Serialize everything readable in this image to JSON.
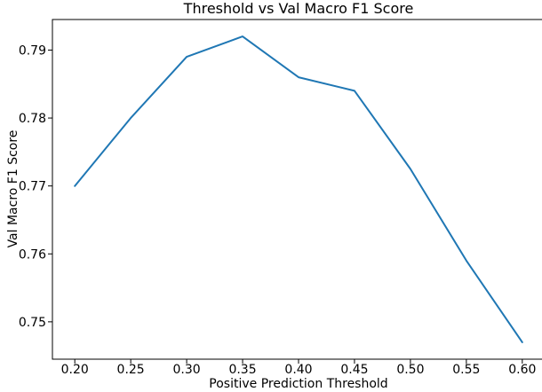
{
  "chart_data": {
    "type": "line",
    "title": "Threshold vs Val Macro F1 Score",
    "xlabel": "Positive Prediction Threshold",
    "ylabel": "Val Macro F1 Score",
    "x": [
      0.2,
      0.25,
      0.3,
      0.35,
      0.4,
      0.45,
      0.5,
      0.55,
      0.6
    ],
    "y": [
      0.77,
      0.78,
      0.789,
      0.792,
      0.786,
      0.784,
      0.7725,
      0.759,
      0.747
    ],
    "xticks": [
      "0.20",
      "0.25",
      "0.30",
      "0.35",
      "0.40",
      "0.45",
      "0.50",
      "0.55",
      "0.60"
    ],
    "yticks": [
      "0.75",
      "0.76",
      "0.77",
      "0.78",
      "0.79"
    ],
    "xlim": [
      0.18,
      0.62
    ],
    "ylim": [
      0.7445,
      0.7945
    ],
    "grid": false,
    "legend": null,
    "line_color": "#1f77b4",
    "axis_color": "#000000"
  }
}
